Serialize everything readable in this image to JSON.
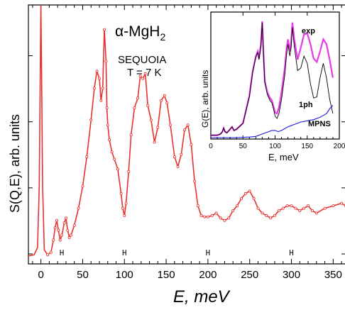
{
  "chart_data": [
    {
      "type": "line",
      "title": "α-MgH",
      "title_subscript": "2",
      "annotations": [
        "SEQUOIA",
        "T = 7 K"
      ],
      "xlabel": "E,  meV",
      "ylabel": "S(Q,E),  arb. units",
      "xlim": [
        -15,
        365
      ],
      "ylim": [
        0,
        1
      ],
      "xticks": [
        0,
        50,
        100,
        150,
        200,
        250,
        300,
        350
      ],
      "grid": false,
      "series": [
        {
          "color": "#e8312e",
          "marker": "open-circle",
          "x": [
            -15,
            -8,
            -4,
            -2,
            -1,
            0,
            1,
            2,
            4,
            8,
            12,
            15,
            17,
            19,
            21,
            23,
            25,
            28,
            30,
            32,
            34,
            36,
            40,
            45,
            50,
            55,
            60,
            64,
            67,
            70,
            72,
            74,
            76,
            78,
            79,
            80,
            82,
            85,
            88,
            92,
            96,
            98,
            100,
            102,
            105,
            108,
            112,
            116,
            119,
            122,
            125,
            128,
            132,
            136,
            140,
            144,
            148,
            151,
            155,
            160,
            164,
            168,
            172,
            176,
            180,
            184,
            188,
            192,
            196,
            200,
            205,
            210,
            215,
            220,
            225,
            230,
            235,
            240,
            245,
            250,
            255,
            260,
            265,
            270,
            275,
            280,
            285,
            290,
            295,
            300,
            305,
            310,
            315,
            320,
            325,
            330,
            340,
            350,
            360,
            365
          ],
          "y": [
            0.015,
            0.02,
            0.05,
            0.3,
            0.7,
            1.2,
            0.7,
            0.3,
            0.04,
            0.02,
            0.03,
            0.08,
            0.13,
            0.16,
            0.12,
            0.08,
            0.1,
            0.15,
            0.17,
            0.12,
            0.09,
            0.1,
            0.14,
            0.21,
            0.3,
            0.42,
            0.57,
            0.7,
            0.77,
            0.74,
            0.65,
            0.7,
            0.94,
            0.81,
            0.62,
            0.55,
            0.49,
            0.44,
            0.41,
            0.37,
            0.27,
            0.21,
            0.18,
            0.23,
            0.36,
            0.51,
            0.62,
            0.66,
            0.75,
            0.74,
            0.76,
            0.63,
            0.57,
            0.48,
            0.54,
            0.65,
            0.67,
            0.64,
            0.55,
            0.42,
            0.38,
            0.43,
            0.53,
            0.55,
            0.47,
            0.32,
            0.22,
            0.18,
            0.175,
            0.175,
            0.18,
            0.19,
            0.17,
            0.16,
            0.17,
            0.2,
            0.22,
            0.25,
            0.27,
            0.28,
            0.25,
            0.21,
            0.19,
            0.18,
            0.17,
            0.18,
            0.2,
            0.21,
            0.22,
            0.22,
            0.21,
            0.2,
            0.21,
            0.22,
            0.2,
            0.19,
            0.21,
            0.22,
            0.23,
            0.22
          ]
        }
      ],
      "resolution_marker_x": [
        25,
        100,
        200,
        300
      ]
    },
    {
      "type": "line",
      "xlabel": "E,  meV",
      "ylabel": "G(E), arb. units",
      "xlim": [
        0,
        200
      ],
      "ylim": [
        0,
        1
      ],
      "xticks": [
        0,
        50,
        100,
        150,
        200
      ],
      "series": [
        {
          "name": "exp",
          "color": "#e83ae8",
          "x": [
            0,
            10,
            15,
            18,
            20,
            22,
            25,
            30,
            33,
            36,
            40,
            50,
            60,
            65,
            70,
            73,
            75,
            78,
            80,
            82,
            84,
            88,
            92,
            95,
            98,
            100,
            103,
            106,
            110,
            115,
            118,
            120,
            123,
            125,
            127,
            130,
            135,
            140,
            145,
            150,
            155,
            160,
            165,
            170,
            175,
            180,
            185,
            190
          ],
          "y": [
            0.02,
            0.02,
            0.03,
            0.05,
            0.08,
            0.05,
            0.04,
            0.07,
            0.09,
            0.06,
            0.07,
            0.12,
            0.35,
            0.55,
            0.68,
            0.72,
            0.66,
            0.78,
            0.97,
            0.7,
            0.47,
            0.38,
            0.33,
            0.31,
            0.25,
            0.21,
            0.2,
            0.25,
            0.38,
            0.58,
            0.75,
            0.82,
            0.72,
            0.8,
            0.96,
            0.82,
            0.65,
            0.75,
            0.86,
            0.87,
            0.78,
            0.66,
            0.63,
            0.72,
            0.82,
            0.78,
            0.65,
            0.5
          ]
        },
        {
          "name": "1ph",
          "color": "#000000",
          "x": [
            0,
            10,
            15,
            18,
            20,
            22,
            25,
            30,
            33,
            36,
            40,
            50,
            60,
            65,
            70,
            73,
            75,
            78,
            80,
            82,
            84,
            88,
            92,
            95,
            98,
            100,
            103,
            106,
            110,
            115,
            118,
            120,
            123,
            125,
            127,
            130,
            135,
            140,
            145,
            150,
            155,
            160,
            165,
            170,
            175,
            180,
            185,
            190
          ],
          "y": [
            0.02,
            0.02,
            0.03,
            0.05,
            0.08,
            0.05,
            0.04,
            0.07,
            0.09,
            0.06,
            0.07,
            0.12,
            0.34,
            0.54,
            0.67,
            0.71,
            0.65,
            0.77,
            0.96,
            0.69,
            0.46,
            0.36,
            0.31,
            0.29,
            0.23,
            0.18,
            0.16,
            0.2,
            0.32,
            0.52,
            0.7,
            0.78,
            0.68,
            0.75,
            0.92,
            0.76,
            0.56,
            0.58,
            0.68,
            0.62,
            0.45,
            0.33,
            0.34,
            0.5,
            0.62,
            0.5,
            0.32,
            0.2
          ]
        },
        {
          "name": "MPNS",
          "color": "#1a1adf",
          "x": [
            0,
            40,
            60,
            70,
            80,
            90,
            95,
            100,
            105,
            110,
            120,
            130,
            140,
            150,
            160,
            170,
            180,
            185,
            190
          ],
          "y": [
            0.0,
            0.0,
            0.005,
            0.01,
            0.03,
            0.05,
            0.06,
            0.06,
            0.05,
            0.06,
            0.09,
            0.11,
            0.13,
            0.14,
            0.15,
            0.17,
            0.2,
            0.24,
            0.27
          ]
        }
      ]
    }
  ]
}
